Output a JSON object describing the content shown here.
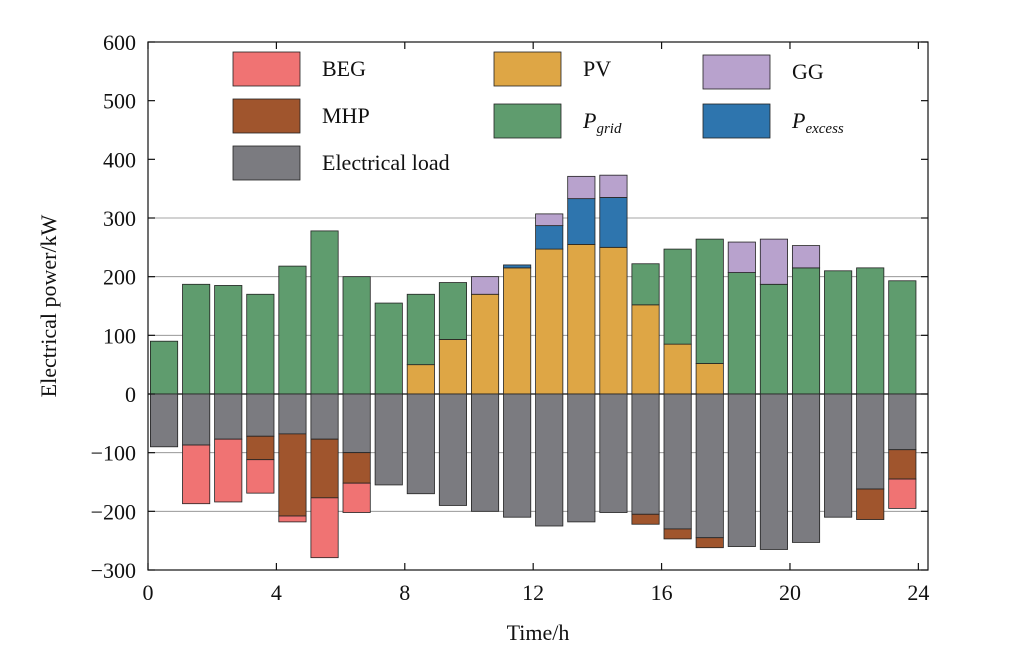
{
  "chart_data": {
    "type": "bar",
    "stacked": true,
    "xlabel": "Time/h",
    "ylabel": "Electrical power/kW",
    "xlim": [
      0,
      24.3
    ],
    "ylim": [
      -300,
      600
    ],
    "xticks": [
      0,
      4,
      8,
      12,
      16,
      20,
      24
    ],
    "yticks": [
      -300,
      -200,
      -100,
      0,
      100,
      200,
      300,
      400,
      500,
      600
    ],
    "grid_y": [
      -200,
      -100,
      0,
      100,
      200,
      300
    ],
    "hours": [
      1,
      2,
      3,
      4,
      5,
      6,
      7,
      8,
      9,
      10,
      11,
      12,
      13,
      14,
      15,
      16,
      17,
      18,
      19,
      20,
      21,
      22,
      23,
      24
    ],
    "positive_series": [
      {
        "key": "PV",
        "color": "#dea645",
        "values": [
          0,
          0,
          0,
          0,
          0,
          0,
          0,
          0,
          50,
          93,
          170,
          215,
          247,
          255,
          250,
          152,
          85,
          52,
          0,
          0,
          0,
          0,
          0,
          0
        ]
      },
      {
        "key": "Pgrid",
        "color": "#5f9c6e",
        "values": [
          90,
          187,
          185,
          170,
          218,
          278,
          200,
          155,
          120,
          97,
          0,
          0,
          0,
          0,
          0,
          70,
          162,
          212,
          207,
          187,
          215,
          210,
          215,
          193
        ]
      },
      {
        "key": "Pexcess",
        "color": "#2e75ae",
        "values": [
          0,
          0,
          0,
          0,
          0,
          0,
          0,
          0,
          0,
          0,
          0,
          5,
          40,
          78,
          85,
          0,
          0,
          0,
          0,
          0,
          0,
          0,
          0,
          0
        ]
      },
      {
        "key": "GG",
        "color": "#b8a2cd",
        "values": [
          0,
          0,
          0,
          0,
          0,
          0,
          0,
          0,
          0,
          0,
          30,
          0,
          20,
          38,
          38,
          0,
          0,
          0,
          52,
          77,
          38,
          0,
          0,
          0
        ]
      }
    ],
    "negative_series": [
      {
        "key": "Electrical load",
        "color": "#7b7b80",
        "values": [
          -90,
          -87,
          -77,
          -72,
          -68,
          -77,
          -100,
          -155,
          -170,
          -190,
          -200,
          -210,
          -225,
          -218,
          -202,
          -205,
          -230,
          -245,
          -260,
          -265,
          -253,
          -210,
          -162,
          -95
        ]
      },
      {
        "key": "MHP",
        "color": "#a0552d",
        "values": [
          0,
          0,
          0,
          -40,
          -140,
          -100,
          -52,
          0,
          0,
          0,
          0,
          0,
          0,
          0,
          0,
          -17,
          -17,
          -17,
          0,
          0,
          0,
          0,
          -52,
          -50
        ]
      },
      {
        "key": "BEG",
        "color": "#f07373",
        "values": [
          0,
          -100,
          -107,
          -57,
          -10,
          -102,
          -50,
          0,
          0,
          0,
          0,
          0,
          0,
          0,
          0,
          0,
          0,
          0,
          0,
          0,
          0,
          0,
          0,
          -50
        ]
      }
    ],
    "legend": {
      "placement": "top",
      "items": [
        {
          "key": "BEG",
          "label": "BEG",
          "color": "#f07373"
        },
        {
          "key": "PV",
          "label": "PV",
          "color": "#dea645"
        },
        {
          "key": "GG",
          "label": "GG",
          "color": "#b8a2cd"
        },
        {
          "key": "MHP",
          "label": "MHP",
          "color": "#a0552d"
        },
        {
          "key": "Pgrid",
          "label": "P",
          "sub": "grid",
          "color": "#5f9c6e"
        },
        {
          "key": "Pexcess",
          "label": "P",
          "sub": "excess",
          "color": "#2e75ae"
        },
        {
          "key": "load",
          "label": "Electrical load",
          "color": "#7b7b80"
        }
      ]
    }
  }
}
